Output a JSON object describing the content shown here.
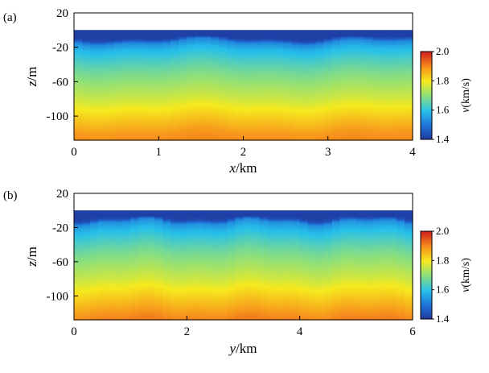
{
  "chart_data": [
    {
      "panel_label": "(a)",
      "type": "heatmap",
      "xlabel_var": "x",
      "xlabel_unit": "/km",
      "ylabel_var": "z",
      "ylabel_unit": "/m",
      "xlim": [
        0,
        4
      ],
      "ylim": [
        -128,
        20
      ],
      "xticks": [
        0,
        1,
        2,
        3,
        4
      ],
      "xtick_labels": [
        "0",
        "1",
        "2",
        "3",
        "4"
      ],
      "yticks": [
        20,
        -20,
        -60,
        -100
      ],
      "ytick_labels": [
        "20",
        "-20",
        "-60",
        "-100"
      ],
      "data_top_z": 0,
      "surface_velocity": 1.41,
      "velocity_profile": [
        {
          "z": -2,
          "v": 1.41
        },
        {
          "z": -6,
          "v": 1.41
        },
        {
          "z": -10,
          "v": 1.42
        },
        {
          "z": -14,
          "v": 1.52
        },
        {
          "z": -22,
          "v": 1.58
        },
        {
          "z": -35,
          "v": 1.63
        },
        {
          "z": -50,
          "v": 1.68
        },
        {
          "z": -65,
          "v": 1.72
        },
        {
          "z": -80,
          "v": 1.76
        },
        {
          "z": -92,
          "v": 1.8
        },
        {
          "z": -105,
          "v": 1.84
        },
        {
          "z": -118,
          "v": 1.88
        },
        {
          "z": -128,
          "v": 1.9
        }
      ],
      "colorbar": {
        "label_var": "v",
        "label_unit": "(km/s)",
        "range": [
          1.4,
          2.0
        ],
        "ticks": [
          2.0,
          1.8,
          1.6,
          1.4
        ],
        "tick_labels": [
          "2.0",
          "1.8",
          "1.6",
          "1.4"
        ],
        "colormap": "jet"
      },
      "grid": false
    },
    {
      "panel_label": "(b)",
      "type": "heatmap",
      "xlabel_var": "y",
      "xlabel_unit": "/km",
      "ylabel_var": "z",
      "ylabel_unit": "/m",
      "xlim": [
        0,
        6
      ],
      "ylim": [
        -128,
        20
      ],
      "xticks": [
        0,
        2,
        4,
        6
      ],
      "xtick_labels": [
        "0",
        "2",
        "4",
        "6"
      ],
      "yticks": [
        20,
        -20,
        -60,
        -100
      ],
      "ytick_labels": [
        "20",
        "-20",
        "-60",
        "-100"
      ],
      "data_top_z": 0,
      "surface_velocity": 1.41,
      "velocity_profile": [
        {
          "z": -2,
          "v": 1.41
        },
        {
          "z": -6,
          "v": 1.41
        },
        {
          "z": -10,
          "v": 1.43
        },
        {
          "z": -14,
          "v": 1.53
        },
        {
          "z": -22,
          "v": 1.58
        },
        {
          "z": -35,
          "v": 1.63
        },
        {
          "z": -50,
          "v": 1.68
        },
        {
          "z": -65,
          "v": 1.72
        },
        {
          "z": -80,
          "v": 1.76
        },
        {
          "z": -92,
          "v": 1.8
        },
        {
          "z": -105,
          "v": 1.84
        },
        {
          "z": -118,
          "v": 1.88
        },
        {
          "z": -128,
          "v": 1.91
        }
      ],
      "colorbar": {
        "label_var": "v",
        "label_unit": "(km/s)",
        "range": [
          1.4,
          2.0
        ],
        "ticks": [
          2.0,
          1.8,
          1.6,
          1.4
        ],
        "tick_labels": [
          "2.0",
          "1.8",
          "1.6",
          "1.4"
        ],
        "colormap": "jet"
      },
      "grid": false
    }
  ]
}
